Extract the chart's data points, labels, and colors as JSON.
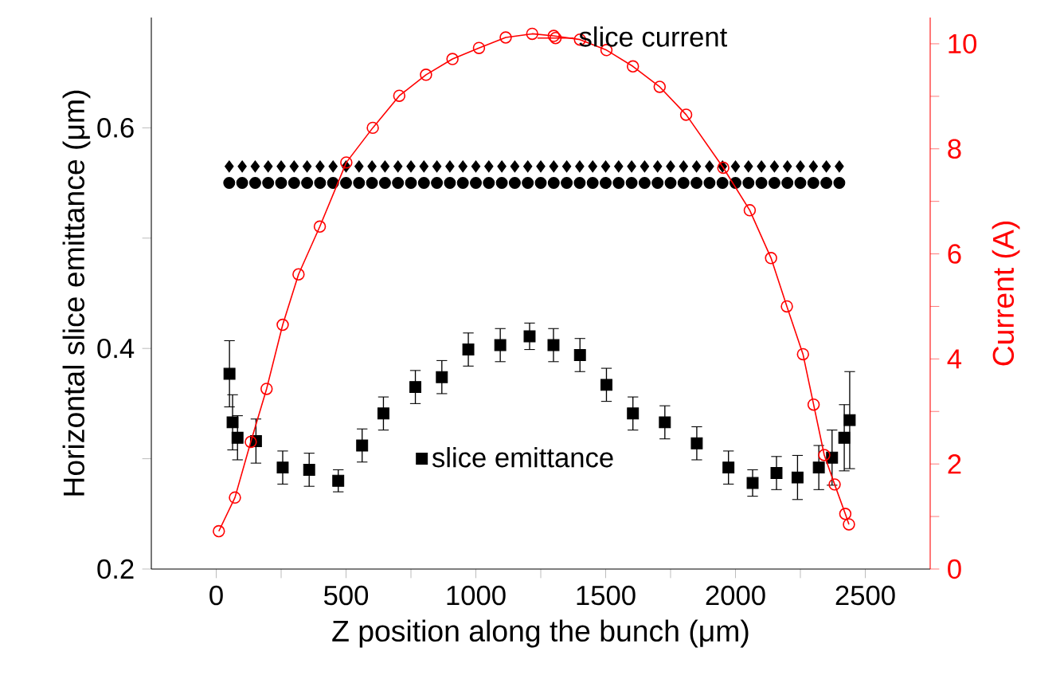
{
  "chart_data": {
    "type": "scatter",
    "xlabel": "Z position along the bunch (μm)",
    "ylabel": "Horizontal slice emittance (μm)",
    "y2label": "Current (A)",
    "xlim": [
      -250,
      2750
    ],
    "ylim": [
      0.2,
      0.7
    ],
    "y2lim": [
      0,
      10.5
    ],
    "xticks": [
      0,
      {
        "value": 250,
        "label": null
      },
      500,
      {
        "value": 750,
        "label": null
      },
      1000,
      {
        "value": 1250,
        "label": null
      },
      1500,
      {
        "value": 1750,
        "label": null
      },
      2000,
      {
        "value": 2250,
        "label": null
      },
      2500
    ],
    "yticks": [
      0.2,
      {
        "value": 0.3,
        "label": null
      },
      0.4,
      {
        "value": 0.5,
        "label": null
      },
      0.6
    ],
    "y2ticks": [
      0,
      {
        "value": 1,
        "label": null
      },
      2,
      {
        "value": 3,
        "label": null
      },
      4,
      {
        "value": 5,
        "label": null
      },
      6,
      {
        "value": 7,
        "label": null
      },
      8,
      {
        "value": 9,
        "label": null
      },
      10
    ],
    "grid": false,
    "legend": "top right",
    "series": [
      {
        "name": "slice emittance",
        "marker": "square",
        "color": "#000000",
        "x": [
          51,
          63,
          82,
          153,
          256,
          358,
          470,
          562,
          644,
          767,
          869,
          971,
          1094,
          1207,
          1299,
          1401,
          1503,
          1605,
          1728,
          1851,
          1973,
          2066,
          2158,
          2239,
          2321,
          2372,
          2419,
          2440
        ],
        "values": [
          0.377,
          0.333,
          0.319,
          0.316,
          0.292,
          0.29,
          0.28,
          0.312,
          0.341,
          0.365,
          0.374,
          0.399,
          0.403,
          0.411,
          0.403,
          0.394,
          0.367,
          0.341,
          0.333,
          0.314,
          0.292,
          0.278,
          0.287,
          0.283,
          0.292,
          0.301,
          0.319,
          0.335
        ],
        "errors": [
          0.03,
          0.025,
          0.02,
          0.02,
          0.015,
          0.015,
          0.01,
          0.015,
          0.015,
          0.015,
          0.015,
          0.015,
          0.015,
          0.012,
          0.015,
          0.015,
          0.015,
          0.015,
          0.015,
          0.015,
          0.015,
          0.012,
          0.015,
          0.02,
          0.02,
          0.025,
          0.03,
          0.044
        ]
      },
      {
        "type": "line",
        "axis": "y2",
        "marker": "circle",
        "color": "#ff0000",
        "x": [
          10,
          72,
          133,
          194,
          256,
          317,
          399,
          501,
          603,
          705,
          808,
          910,
          1012,
          1115,
          1217,
          1300,
          1401,
          1503,
          1605,
          1708,
          1810,
          1953,
          2055,
          2137,
          2198,
          2260,
          2301,
          2342,
          2382,
          2423,
          2437
        ],
        "values": [
          0.72,
          1.36,
          2.42,
          3.43,
          4.65,
          5.61,
          6.52,
          7.74,
          8.4,
          9.01,
          9.41,
          9.71,
          9.92,
          10.12,
          10.19,
          10.15,
          10.08,
          9.88,
          9.57,
          9.18,
          8.65,
          7.64,
          6.83,
          5.92,
          5.0,
          4.09,
          3.13,
          2.17,
          1.61,
          1.05,
          0.85
        ],
        "name": "slice current"
      },
      {
        "marker": "diamond",
        "color": "#000000",
        "x": [
          50,
          100,
          150,
          200,
          250,
          300,
          350,
          400,
          450,
          500,
          550,
          600,
          650,
          700,
          750,
          800,
          850,
          900,
          950,
          1000,
          1050,
          1100,
          1150,
          1200,
          1250,
          1300,
          1350,
          1400,
          1450,
          1500,
          1550,
          1600,
          1650,
          1700,
          1750,
          1800,
          1850,
          1900,
          1950,
          2000,
          2050,
          2100,
          2150,
          2200,
          2250,
          2300,
          2350,
          2400
        ],
        "values": [
          0.565,
          0.565,
          0.565,
          0.565,
          0.565,
          0.565,
          0.565,
          0.565,
          0.565,
          0.565,
          0.565,
          0.565,
          0.565,
          0.565,
          0.565,
          0.565,
          0.565,
          0.565,
          0.565,
          0.565,
          0.565,
          0.565,
          0.565,
          0.565,
          0.565,
          0.565,
          0.565,
          0.565,
          0.565,
          0.565,
          0.565,
          0.565,
          0.565,
          0.565,
          0.565,
          0.565,
          0.565,
          0.565,
          0.565,
          0.565,
          0.565,
          0.565,
          0.565,
          0.565,
          0.565,
          0.565,
          0.565,
          0.565
        ]
      },
      {
        "marker": "circle",
        "color": "#000000",
        "x": [
          50,
          100,
          150,
          200,
          250,
          300,
          350,
          400,
          450,
          500,
          550,
          600,
          650,
          700,
          750,
          800,
          850,
          900,
          950,
          1000,
          1050,
          1100,
          1150,
          1200,
          1250,
          1300,
          1350,
          1400,
          1450,
          1500,
          1550,
          1600,
          1650,
          1700,
          1750,
          1800,
          1850,
          1900,
          1950,
          2000,
          2050,
          2100,
          2150,
          2200,
          2250,
          2300,
          2350,
          2400
        ],
        "values": [
          0.55,
          0.55,
          0.55,
          0.55,
          0.55,
          0.55,
          0.55,
          0.55,
          0.55,
          0.55,
          0.55,
          0.55,
          0.55,
          0.55,
          0.55,
          0.55,
          0.55,
          0.55,
          0.55,
          0.55,
          0.55,
          0.55,
          0.55,
          0.55,
          0.55,
          0.55,
          0.55,
          0.55,
          0.55,
          0.55,
          0.55,
          0.55,
          0.55,
          0.55,
          0.55,
          0.55,
          0.55,
          0.55,
          0.55,
          0.55,
          0.55,
          0.55,
          0.55,
          0.55,
          0.55,
          0.55,
          0.55,
          0.55
        ]
      }
    ]
  }
}
